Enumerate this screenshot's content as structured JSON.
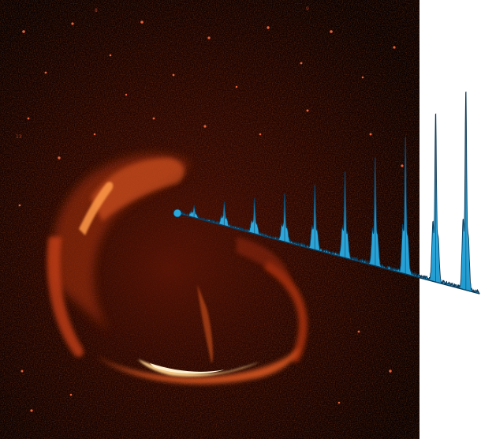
{
  "image": {
    "subject": "supernova-remnant-with-pulsar-light-curve",
    "background_color": "#000000",
    "nebula_colors": [
      "#2a0500",
      "#6e1a06",
      "#c2421a",
      "#f47a35",
      "#ffd9a0"
    ],
    "curve_color": "#2aa8dc",
    "curve_edge_color": "#0f3a57",
    "tiny_markers": [
      "13",
      "8",
      "9"
    ]
  },
  "chart_data": {
    "type": "line",
    "title": "",
    "xlabel": "",
    "ylabel": "",
    "pulses": 10,
    "peak_heights": [
      0.1,
      0.18,
      0.25,
      0.32,
      0.42,
      0.52,
      0.62,
      0.75,
      0.88,
      1.0
    ],
    "grid": false
  }
}
